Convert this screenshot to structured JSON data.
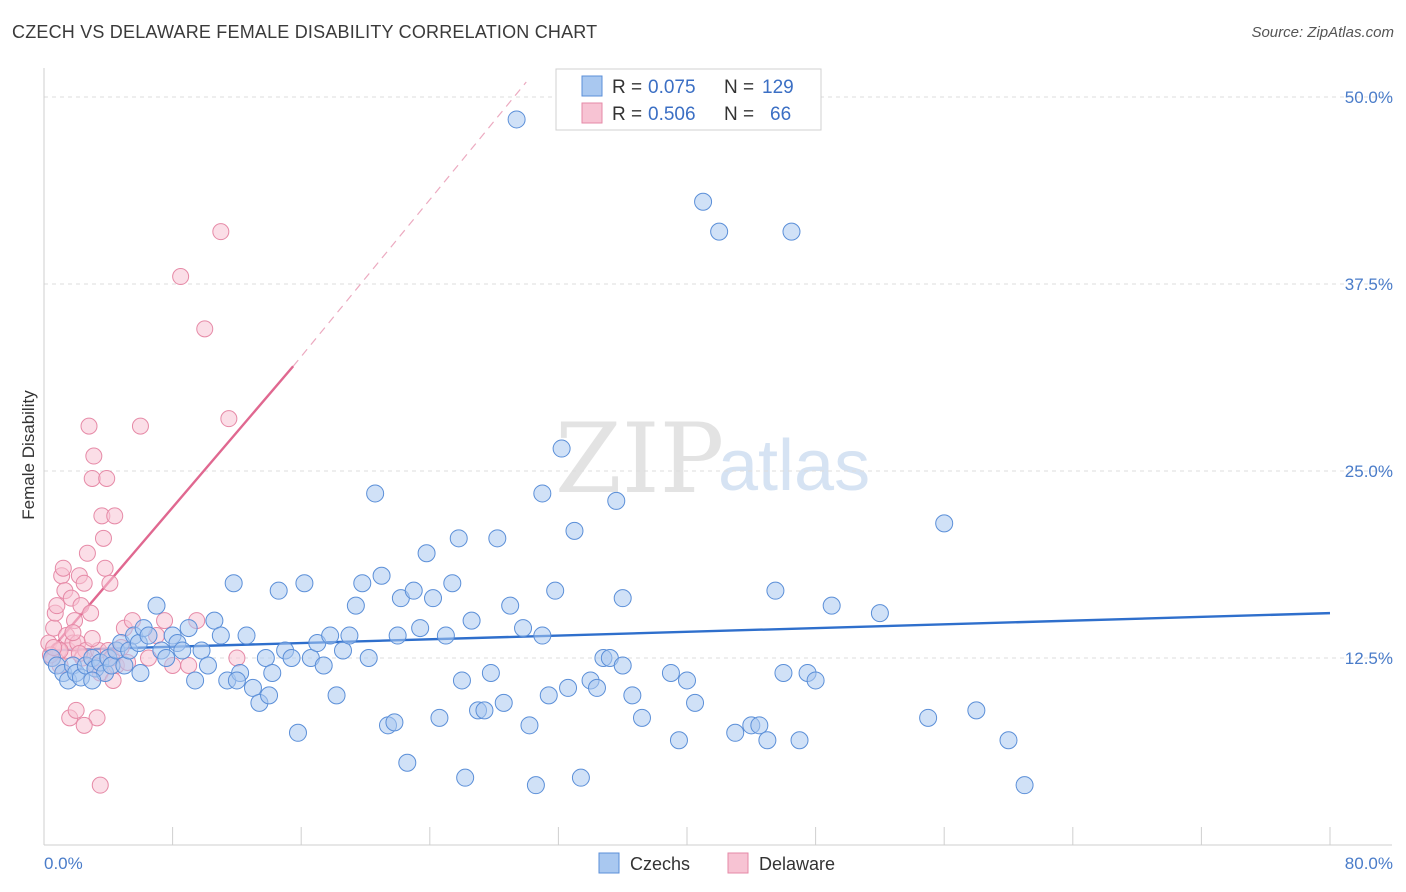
{
  "title": "CZECH VS DELAWARE FEMALE DISABILITY CORRELATION CHART",
  "source": "Source: ZipAtlas.com",
  "watermark": {
    "zip": "ZIP",
    "atlas": "atlas"
  },
  "colors": {
    "czech_fill": "#a9c8f0",
    "czech_stroke": "#5b8fd8",
    "czech_line": "#2f6fcc",
    "delaware_fill": "#f7c3d3",
    "delaware_stroke": "#e68aa7",
    "delaware_line": "#e06890",
    "tick_text": "#4a7cc9",
    "grid": "#dddddd"
  },
  "legend": {
    "rows": [
      {
        "r_label": "R =",
        "r_value": "0.075",
        "n_label": "N =",
        "n_value": "129"
      },
      {
        "r_label": "R =",
        "r_value": "0.506",
        "n_label": "N =",
        "n_value": "66"
      }
    ]
  },
  "bottom_legend": [
    "Czechs",
    "Delaware"
  ],
  "chart_data": {
    "type": "scatter",
    "title": "CZECH VS DELAWARE FEMALE DISABILITY CORRELATION CHART",
    "xlabel": "",
    "ylabel": "Female Disability",
    "xlim": [
      0,
      80
    ],
    "ylim": [
      0,
      50
    ],
    "x_tick_labels": [
      "0.0%",
      "80.0%"
    ],
    "y_ticks": [
      12.5,
      25.0,
      37.5,
      50.0
    ],
    "y_tick_labels": [
      "12.5%",
      "25.0%",
      "37.5%",
      "50.0%"
    ],
    "grid": "horizontal dashed",
    "legend_placement": "top-center",
    "series": [
      {
        "name": "Czechs",
        "r": 0.075,
        "n": 129,
        "trend": {
          "x": [
            0,
            80
          ],
          "y": [
            13.0,
            15.5
          ]
        },
        "points": [
          [
            0.5,
            12.5
          ],
          [
            0.8,
            12.0
          ],
          [
            1.2,
            11.5
          ],
          [
            1.5,
            11.0
          ],
          [
            1.8,
            12.0
          ],
          [
            2.0,
            11.5
          ],
          [
            2.3,
            11.2
          ],
          [
            2.6,
            12.0
          ],
          [
            3.0,
            12.5
          ],
          [
            3.2,
            11.8
          ],
          [
            3.5,
            12.2
          ],
          [
            3.8,
            11.5
          ],
          [
            4.0,
            12.5
          ],
          [
            4.2,
            12.0
          ],
          [
            4.5,
            13.0
          ],
          [
            4.8,
            13.5
          ],
          [
            5.0,
            12.0
          ],
          [
            5.3,
            13.0
          ],
          [
            5.6,
            14.0
          ],
          [
            5.9,
            13.5
          ],
          [
            6.2,
            14.5
          ],
          [
            6.5,
            14.0
          ],
          [
            7.0,
            16.0
          ],
          [
            7.3,
            13.0
          ],
          [
            7.6,
            12.5
          ],
          [
            8.0,
            14.0
          ],
          [
            8.3,
            13.5
          ],
          [
            8.6,
            13.0
          ],
          [
            9.0,
            14.5
          ],
          [
            9.4,
            11.0
          ],
          [
            9.8,
            13.0
          ],
          [
            10.2,
            12.0
          ],
          [
            10.6,
            15.0
          ],
          [
            11.0,
            14.0
          ],
          [
            11.4,
            11.0
          ],
          [
            11.8,
            17.5
          ],
          [
            12.2,
            11.5
          ],
          [
            12.6,
            14.0
          ],
          [
            13.0,
            10.5
          ],
          [
            13.4,
            9.5
          ],
          [
            13.8,
            12.5
          ],
          [
            14.2,
            11.5
          ],
          [
            14.6,
            17.0
          ],
          [
            15.0,
            13.0
          ],
          [
            15.4,
            12.5
          ],
          [
            15.8,
            7.5
          ],
          [
            16.2,
            17.5
          ],
          [
            16.6,
            12.5
          ],
          [
            17.0,
            13.5
          ],
          [
            17.4,
            12.0
          ],
          [
            17.8,
            14.0
          ],
          [
            18.2,
            10.0
          ],
          [
            18.6,
            13.0
          ],
          [
            19.0,
            14.0
          ],
          [
            19.4,
            16.0
          ],
          [
            19.8,
            17.5
          ],
          [
            20.2,
            12.5
          ],
          [
            20.6,
            23.5
          ],
          [
            21.0,
            18.0
          ],
          [
            21.4,
            8.0
          ],
          [
            21.8,
            8.2
          ],
          [
            22.2,
            16.5
          ],
          [
            22.6,
            5.5
          ],
          [
            23.0,
            17.0
          ],
          [
            23.4,
            14.5
          ],
          [
            23.8,
            19.5
          ],
          [
            24.2,
            16.5
          ],
          [
            24.6,
            8.5
          ],
          [
            25.0,
            14.0
          ],
          [
            25.4,
            17.5
          ],
          [
            25.8,
            20.5
          ],
          [
            26.2,
            4.5
          ],
          [
            26.6,
            15.0
          ],
          [
            27.0,
            9.0
          ],
          [
            27.4,
            9.0
          ],
          [
            27.8,
            11.5
          ],
          [
            28.2,
            20.5
          ],
          [
            28.6,
            9.5
          ],
          [
            29.0,
            16.0
          ],
          [
            29.4,
            48.5
          ],
          [
            29.8,
            14.5
          ],
          [
            30.2,
            8.0
          ],
          [
            30.6,
            4.0
          ],
          [
            31.0,
            23.5
          ],
          [
            31.4,
            10.0
          ],
          [
            31.8,
            17.0
          ],
          [
            32.2,
            26.5
          ],
          [
            32.6,
            10.5
          ],
          [
            33.0,
            21.0
          ],
          [
            33.4,
            4.5
          ],
          [
            34.0,
            11.0
          ],
          [
            34.4,
            10.5
          ],
          [
            34.8,
            12.5
          ],
          [
            35.2,
            12.5
          ],
          [
            35.6,
            23.0
          ],
          [
            36.0,
            16.5
          ],
          [
            36.6,
            10.0
          ],
          [
            37.2,
            8.5
          ],
          [
            39.0,
            11.5
          ],
          [
            39.5,
            7.0
          ],
          [
            40.0,
            11.0
          ],
          [
            40.5,
            9.5
          ],
          [
            41.0,
            43.0
          ],
          [
            42.0,
            41.0
          ],
          [
            43.0,
            7.5
          ],
          [
            44.0,
            8.0
          ],
          [
            44.5,
            8.0
          ],
          [
            45.0,
            7.0
          ],
          [
            45.5,
            17.0
          ],
          [
            46.0,
            11.5
          ],
          [
            46.5,
            41.0
          ],
          [
            47.0,
            7.0
          ],
          [
            47.5,
            11.5
          ],
          [
            48.0,
            11.0
          ],
          [
            49.0,
            16.0
          ],
          [
            52.0,
            15.5
          ],
          [
            55.0,
            8.5
          ],
          [
            56.0,
            21.5
          ],
          [
            58.0,
            9.0
          ],
          [
            60.0,
            7.0
          ],
          [
            61.0,
            4.0
          ],
          [
            12.0,
            11.0
          ],
          [
            14.0,
            10.0
          ],
          [
            22.0,
            14.0
          ],
          [
            26.0,
            11.0
          ],
          [
            31.0,
            14.0
          ],
          [
            36.0,
            12.0
          ],
          [
            3.0,
            11.0
          ],
          [
            6.0,
            11.5
          ]
        ]
      },
      {
        "name": "Delaware",
        "r": 0.506,
        "n": 66,
        "trend": {
          "x": [
            0,
            15.5
          ],
          "y": [
            12.5,
            32.0
          ]
        },
        "trend_extended": {
          "x": [
            15.5,
            30
          ],
          "y": [
            32.0,
            51.0
          ]
        },
        "points": [
          [
            0.3,
            13.5
          ],
          [
            0.5,
            12.5
          ],
          [
            0.6,
            14.5
          ],
          [
            0.7,
            15.5
          ],
          [
            0.8,
            16.0
          ],
          [
            0.9,
            13.0
          ],
          [
            1.0,
            12.0
          ],
          [
            1.1,
            18.0
          ],
          [
            1.2,
            18.5
          ],
          [
            1.3,
            17.0
          ],
          [
            1.4,
            14.0
          ],
          [
            1.5,
            13.0
          ],
          [
            1.6,
            8.5
          ],
          [
            1.7,
            16.5
          ],
          [
            1.8,
            13.5
          ],
          [
            1.9,
            15.0
          ],
          [
            2.0,
            9.0
          ],
          [
            2.1,
            13.5
          ],
          [
            2.2,
            18.0
          ],
          [
            2.3,
            16.0
          ],
          [
            2.4,
            12.5
          ],
          [
            2.5,
            17.5
          ],
          [
            2.6,
            13.0
          ],
          [
            2.7,
            19.5
          ],
          [
            2.8,
            28.0
          ],
          [
            2.9,
            15.5
          ],
          [
            3.0,
            24.5
          ],
          [
            3.1,
            26.0
          ],
          [
            3.2,
            12.0
          ],
          [
            3.3,
            8.5
          ],
          [
            3.4,
            13.0
          ],
          [
            3.5,
            11.5
          ],
          [
            3.6,
            22.0
          ],
          [
            3.7,
            20.5
          ],
          [
            3.8,
            18.5
          ],
          [
            3.9,
            24.5
          ],
          [
            4.0,
            13.0
          ],
          [
            4.1,
            17.5
          ],
          [
            4.2,
            12.5
          ],
          [
            4.3,
            11.0
          ],
          [
            4.4,
            22.0
          ],
          [
            4.5,
            12.0
          ],
          [
            5.0,
            14.5
          ],
          [
            5.5,
            15.0
          ],
          [
            6.0,
            28.0
          ],
          [
            6.5,
            12.5
          ],
          [
            7.0,
            14.0
          ],
          [
            7.5,
            15.0
          ],
          [
            8.0,
            12.0
          ],
          [
            8.5,
            38.0
          ],
          [
            9.0,
            12.0
          ],
          [
            9.5,
            15.0
          ],
          [
            10.0,
            34.5
          ],
          [
            11.0,
            41.0
          ],
          [
            11.5,
            28.5
          ],
          [
            12.0,
            12.5
          ],
          [
            2.5,
            8.0
          ],
          [
            3.5,
            4.0
          ],
          [
            1.0,
            13.0
          ],
          [
            0.4,
            12.7
          ],
          [
            0.6,
            13.2
          ],
          [
            1.8,
            14.2
          ],
          [
            2.2,
            12.8
          ],
          [
            4.8,
            13.2
          ],
          [
            5.2,
            12.2
          ],
          [
            3.0,
            13.8
          ]
        ]
      }
    ]
  }
}
